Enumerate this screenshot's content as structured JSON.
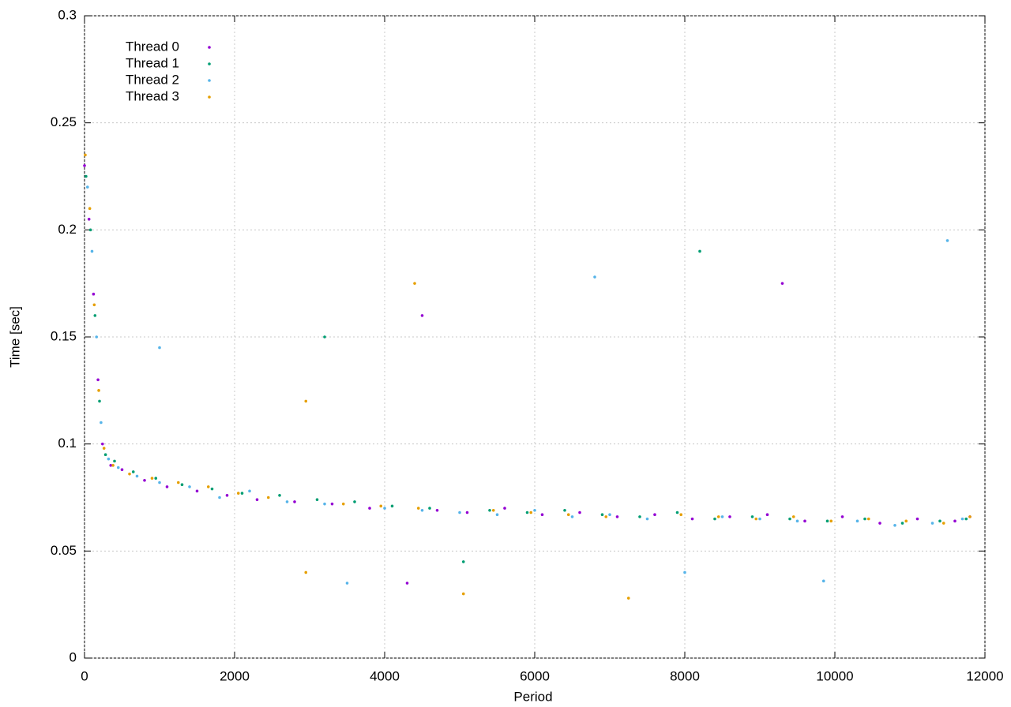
{
  "chart_data": {
    "type": "scatter",
    "xlabel": "Period",
    "ylabel": "Time [sec]",
    "xlim": [
      0,
      12000
    ],
    "ylim": [
      0,
      0.3
    ],
    "xticks": [
      0,
      2000,
      4000,
      6000,
      8000,
      10000,
      12000
    ],
    "yticks": [
      0,
      0.05,
      0.1,
      0.15,
      0.2,
      0.25,
      0.3
    ],
    "grid": true,
    "legend": "upper-left",
    "series": [
      {
        "name": "Thread 0",
        "color": "#9400d3",
        "x": [
          0,
          60,
          120,
          180,
          240,
          350,
          500,
          800,
          1100,
          1500,
          1900,
          2300,
          2800,
          3300,
          3800,
          4300,
          4700,
          5100,
          5600,
          6100,
          6600,
          7100,
          7600,
          8100,
          8600,
          9100,
          9600,
          10100,
          10600,
          11100,
          11600,
          11800,
          4500,
          9300
        ],
        "values": [
          0.23,
          0.205,
          0.17,
          0.13,
          0.1,
          0.09,
          0.088,
          0.083,
          0.08,
          0.078,
          0.076,
          0.074,
          0.073,
          0.072,
          0.07,
          0.035,
          0.069,
          0.068,
          0.07,
          0.067,
          0.068,
          0.066,
          0.067,
          0.065,
          0.066,
          0.067,
          0.064,
          0.066,
          0.063,
          0.065,
          0.064,
          0.066,
          0.16,
          0.175
        ]
      },
      {
        "name": "Thread 1",
        "color": "#009e73",
        "x": [
          20,
          80,
          140,
          200,
          280,
          400,
          650,
          950,
          1300,
          1700,
          2100,
          2600,
          3100,
          3600,
          4100,
          4600,
          5050,
          5400,
          5900,
          6400,
          6900,
          7400,
          7900,
          8400,
          8900,
          9400,
          9900,
          10400,
          10900,
          11400,
          11750,
          3200,
          8200
        ],
        "values": [
          0.225,
          0.2,
          0.16,
          0.12,
          0.095,
          0.092,
          0.087,
          0.084,
          0.081,
          0.079,
          0.077,
          0.076,
          0.074,
          0.073,
          0.071,
          0.07,
          0.045,
          0.069,
          0.068,
          0.069,
          0.067,
          0.066,
          0.068,
          0.065,
          0.066,
          0.065,
          0.064,
          0.065,
          0.063,
          0.064,
          0.065,
          0.15,
          0.19
        ]
      },
      {
        "name": "Thread 2",
        "color": "#56b4e9",
        "x": [
          40,
          100,
          160,
          220,
          320,
          450,
          700,
          1000,
          1400,
          1800,
          2200,
          2700,
          3200,
          3500,
          4000,
          4500,
          5000,
          5500,
          6000,
          6500,
          7000,
          7500,
          8000,
          8500,
          9000,
          9500,
          9850,
          10300,
          10800,
          11300,
          11700,
          1000,
          6800,
          11500
        ],
        "values": [
          0.22,
          0.19,
          0.15,
          0.11,
          0.093,
          0.089,
          0.085,
          0.082,
          0.08,
          0.075,
          0.078,
          0.073,
          0.072,
          0.035,
          0.07,
          0.069,
          0.068,
          0.067,
          0.069,
          0.066,
          0.067,
          0.065,
          0.04,
          0.066,
          0.065,
          0.064,
          0.036,
          0.064,
          0.062,
          0.063,
          0.065,
          0.145,
          0.178,
          0.195
        ]
      },
      {
        "name": "Thread 3",
        "color": "#e69f00",
        "x": [
          10,
          70,
          130,
          190,
          260,
          380,
          600,
          900,
          1250,
          1650,
          2050,
          2450,
          2950,
          3450,
          3950,
          4450,
          5050,
          5450,
          5950,
          6450,
          6950,
          7250,
          7950,
          8450,
          8950,
          9450,
          9950,
          10450,
          10950,
          11450,
          11800,
          2950,
          4400
        ],
        "values": [
          0.235,
          0.21,
          0.165,
          0.125,
          0.098,
          0.09,
          0.086,
          0.084,
          0.082,
          0.08,
          0.077,
          0.075,
          0.04,
          0.072,
          0.071,
          0.07,
          0.03,
          0.069,
          0.068,
          0.067,
          0.066,
          0.028,
          0.067,
          0.066,
          0.065,
          0.066,
          0.064,
          0.065,
          0.064,
          0.063,
          0.066,
          0.12,
          0.175
        ]
      }
    ]
  }
}
